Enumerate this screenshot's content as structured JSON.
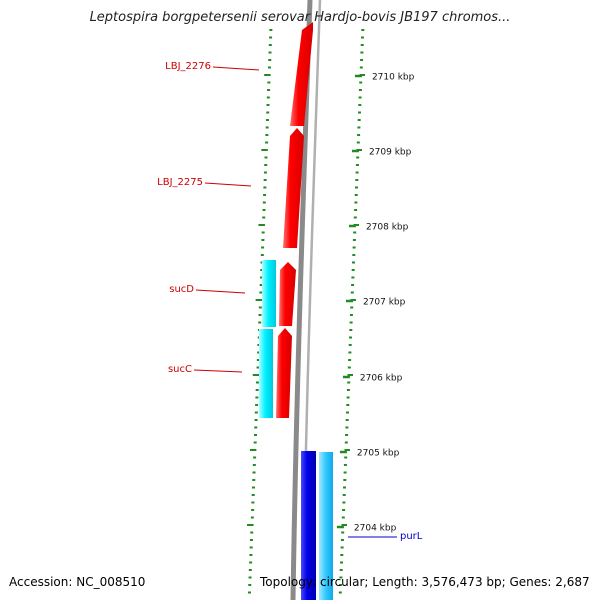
{
  "title": "Leptospira borgpetersenii serovar Hardjo-bovis JB197 chromos...",
  "accession": "Accession: NC_008510",
  "summary": "Topology: circular; Length: 3,576,473 bp; Genes: 2,687",
  "map": {
    "ticks": [
      {
        "label": "2710 kbp"
      },
      {
        "label": "2709 kbp"
      },
      {
        "label": "2708 kbp"
      },
      {
        "label": "2707 kbp"
      },
      {
        "label": "2706 kbp"
      },
      {
        "label": "2705 kbp"
      },
      {
        "label": "2704 kbp"
      }
    ],
    "genes": [
      {
        "name": "LBJ_2276",
        "color": "#cc0000"
      },
      {
        "name": "LBJ_2275",
        "color": "#cc0000"
      },
      {
        "name": "sucD",
        "color": "#cc0000"
      },
      {
        "name": "sucC",
        "color": "#cc0000"
      },
      {
        "name": "purL",
        "color": "#0000cc"
      }
    ],
    "colors": {
      "forward_cds": "#ff0000",
      "forward_rna": "#00ffff",
      "reverse_cds": "#0000dd",
      "reverse_rna": "#33ccff",
      "backbone": "#808080",
      "gc_dash": "#228b22"
    }
  }
}
